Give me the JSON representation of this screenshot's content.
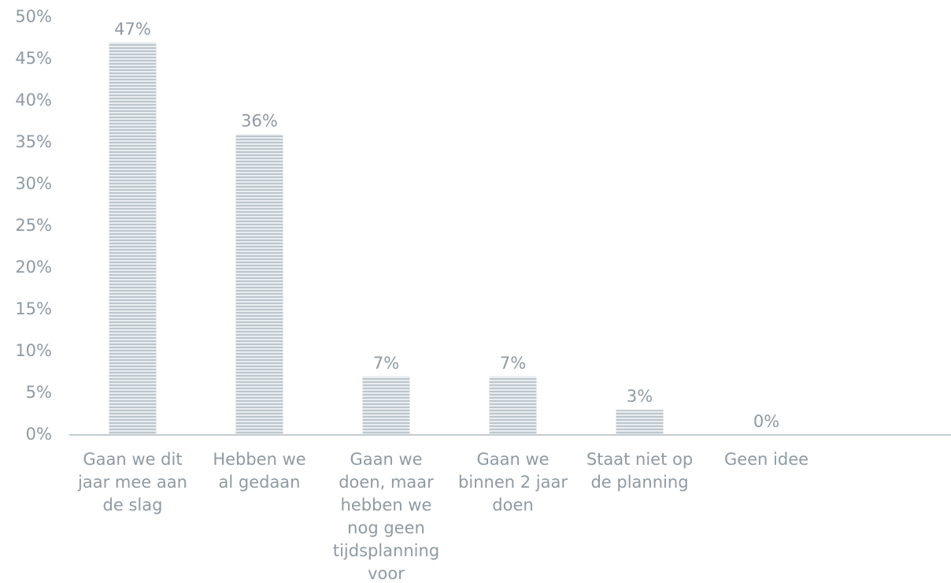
{
  "chart_data": {
    "type": "bar",
    "title": "",
    "xlabel": "",
    "ylabel": "",
    "categories": [
      [
        "Gaan we dit",
        "jaar mee aan",
        "de slag"
      ],
      [
        "Hebben we",
        "al gedaan"
      ],
      [
        "Gaan we",
        "doen, maar",
        "hebben we",
        "nog geen",
        "tijdsplanning",
        "voor"
      ],
      [
        "Gaan we",
        "binnen 2 jaar",
        "doen"
      ],
      [
        "Staat niet op",
        "de planning"
      ],
      [
        "Geen idee"
      ]
    ],
    "values": [
      47,
      36,
      7,
      7,
      3,
      0
    ],
    "data_labels": [
      "47%",
      "36%",
      "7%",
      "7%",
      "3%",
      "0%"
    ],
    "ylim": [
      0,
      50
    ],
    "yticks": [
      {
        "value": 0,
        "label": "0%"
      },
      {
        "value": 5,
        "label": "5%"
      },
      {
        "value": 10,
        "label": "10%"
      },
      {
        "value": 15,
        "label": "15%"
      },
      {
        "value": 20,
        "label": "20%"
      },
      {
        "value": 25,
        "label": "25%"
      },
      {
        "value": 30,
        "label": "30%"
      },
      {
        "value": 35,
        "label": "35%"
      },
      {
        "value": 40,
        "label": "40%"
      },
      {
        "value": 45,
        "label": "45%"
      },
      {
        "value": 50,
        "label": "50%"
      }
    ],
    "grid": false,
    "legend": "none",
    "colors": {
      "bar": "#bcc6cc",
      "bar_stripe": "#e9edf0",
      "axis": "#c3ccd2",
      "text": "#8e9aa3"
    }
  }
}
